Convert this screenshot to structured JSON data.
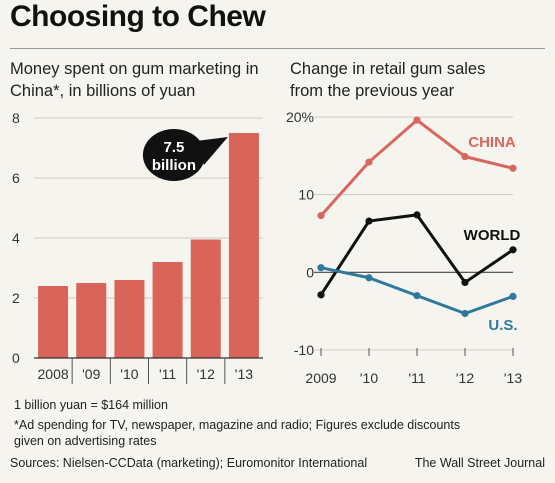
{
  "header": {
    "title": "Choosing to Chew"
  },
  "colors": {
    "bar": "#d9655a",
    "china": "#d9665b",
    "world": "#111111",
    "us": "#2f7a9c",
    "callout": "#111111",
    "grid": "#cfcac0",
    "background": "#f6f4ef"
  },
  "chart_data": [
    {
      "type": "bar",
      "subtitle_lines": [
        "Money spent on gum marketing in",
        "China*, in billions of yuan"
      ],
      "categories": [
        "2008",
        "'09",
        "'10",
        "'11",
        "'12",
        "'13"
      ],
      "values": [
        2.4,
        2.5,
        2.6,
        3.2,
        3.95,
        7.5
      ],
      "ylim": [
        0,
        8
      ],
      "yticks": [
        0,
        2,
        4,
        6,
        8
      ],
      "callout": {
        "category": "'13",
        "line1": "7.5",
        "line2": "billion"
      },
      "grid": true
    },
    {
      "type": "line",
      "subtitle_lines": [
        "Change in retail gum sales",
        "from the previous year"
      ],
      "x": [
        "2009",
        "'10",
        "'11",
        "'12",
        "'13"
      ],
      "ylim": [
        -10,
        20
      ],
      "yticks": [
        -10,
        0,
        10,
        20
      ],
      "ytick_labels": [
        "-10",
        "0",
        "10",
        "20%"
      ],
      "grid": true,
      "series": [
        {
          "name": "CHINA",
          "values": [
            7.3,
            14.2,
            19.6,
            14.9,
            13.4
          ]
        },
        {
          "name": "WORLD",
          "values": [
            -2.9,
            6.6,
            7.4,
            -1.3,
            2.9
          ]
        },
        {
          "name": "U.S.",
          "values": [
            0.6,
            -0.7,
            -3.0,
            -5.3,
            -3.1
          ]
        }
      ]
    }
  ],
  "footer": {
    "conversion_note": "1 billion yuan = $164 million",
    "ad_note": "*Ad spending for TV, newspaper, magazine and radio; Figures exclude discounts given on advertising rates",
    "sources": "Sources: Nielsen-CCData (marketing); Euromonitor International",
    "credit": "The Wall Street Journal"
  }
}
